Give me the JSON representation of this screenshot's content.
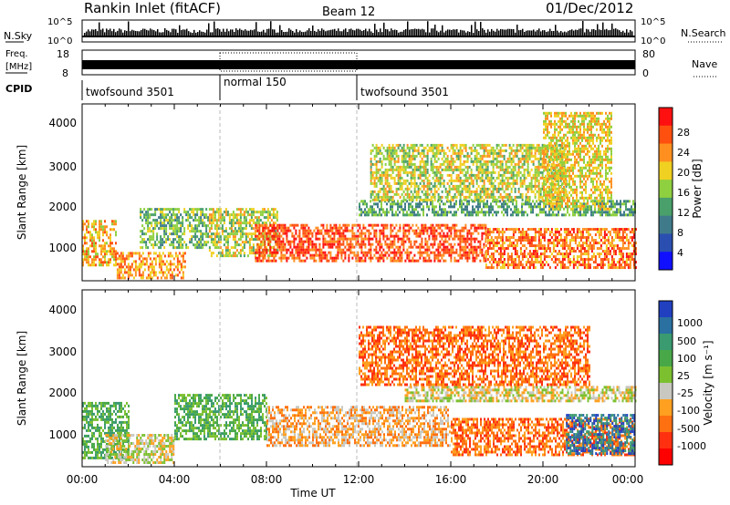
{
  "header": {
    "station": "Rankin Inlet (fitACF)",
    "beam": "Beam 12",
    "date": "01/Dec/2012"
  },
  "strips": {
    "nsky_label": "N.Sky",
    "nsky_ticks": [
      "10^5",
      "10^0"
    ],
    "nsearch_label": "N.Search",
    "freq_label_line1": "Freq.",
    "freq_label_line2": "[MHz]",
    "freq_ticks": [
      "18",
      "8"
    ],
    "nave_label": "Nave",
    "nave_ticks": [
      "80",
      "0"
    ],
    "cpid_label": "CPID",
    "cpid_segments": [
      {
        "label": "twofsound 3501",
        "start_h": 0,
        "end_h": 6
      },
      {
        "label": "normal 150",
        "start_h": 6,
        "end_h": 12
      },
      {
        "label": "twofsound 3501",
        "start_h": 12,
        "end_h": 24
      }
    ]
  },
  "time_axis": {
    "ticks": [
      "00:00",
      "04:00",
      "08:00",
      "12:00",
      "16:00",
      "20:00",
      "00:00"
    ],
    "label": "Time UT"
  },
  "panels": {
    "power": {
      "ylabel": "Slant Range [km]",
      "yticks": [
        "4000",
        "3000",
        "2000",
        "1000"
      ],
      "cbar_label": "Power [dB]",
      "cbar_ticks": [
        "28",
        "24",
        "20",
        "16",
        "12",
        "8",
        "4"
      ]
    },
    "velocity": {
      "ylabel": "Slant Range [km]",
      "yticks": [
        "4000",
        "3000",
        "2000",
        "1000"
      ],
      "cbar_label": "Velocity [m s⁻¹]",
      "cbar_ticks": [
        "1000",
        "500",
        "100",
        "25",
        "-25",
        "-100",
        "-500",
        "-1000"
      ]
    }
  },
  "chart_data": [
    {
      "type": "heatmap",
      "title": "Rankin Inlet (fitACF) Beam 12 01/Dec/2012",
      "xlabel": "Time UT",
      "ylabel": "Slant Range [km]",
      "xlim": [
        0,
        24
      ],
      "ylim": [
        180,
        4600
      ],
      "colorbar": {
        "label": "Power [dB]",
        "range": [
          0,
          32
        ],
        "ticks": [
          4,
          8,
          12,
          16,
          20,
          24,
          28
        ]
      },
      "colors": [
        "#1010ff",
        "#2a4fb0",
        "#3f7a8a",
        "#4aa06a",
        "#8fd040",
        "#f0d020",
        "#ff9020",
        "#ff5010",
        "#ff1010"
      ],
      "regions": [
        {
          "t": [
            0,
            1.5
          ],
          "range_km": [
            600,
            1700
          ],
          "value": 22
        },
        {
          "t": [
            1.5,
            4.5
          ],
          "range_km": [
            250,
            900
          ],
          "value": 24
        },
        {
          "t": [
            2.5,
            5.5
          ],
          "range_km": [
            1000,
            2000
          ],
          "value": 14
        },
        {
          "t": [
            5.5,
            8.5
          ],
          "range_km": [
            800,
            2000
          ],
          "value": 18
        },
        {
          "t": [
            7.5,
            17.5
          ],
          "range_km": [
            700,
            1600
          ],
          "value": 28
        },
        {
          "t": [
            17.5,
            24
          ],
          "range_km": [
            500,
            1500
          ],
          "value": 26
        },
        {
          "t": [
            12,
            24
          ],
          "range_km": [
            1800,
            2200
          ],
          "value": 12
        },
        {
          "t": [
            12.5,
            21
          ],
          "range_km": [
            2200,
            3600
          ],
          "value": 18
        },
        {
          "t": [
            20,
            23
          ],
          "range_km": [
            2000,
            4400
          ],
          "value": 20
        }
      ]
    },
    {
      "type": "heatmap",
      "xlabel": "Time UT",
      "ylabel": "Slant Range [km]",
      "xlim": [
        0,
        24
      ],
      "ylim": [
        180,
        4600
      ],
      "colorbar": {
        "label": "Velocity [m s⁻¹]",
        "ticks": [
          1000,
          500,
          100,
          25,
          -25,
          -100,
          -500,
          -1000
        ]
      },
      "colors": [
        "#2040c0",
        "#2a70a0",
        "#3a9a70",
        "#48a848",
        "#7cc030",
        "#c8c8c0",
        "#ffa020",
        "#ff7010",
        "#ff3010",
        "#ff0000"
      ],
      "regions": [
        {
          "t": [
            0,
            2
          ],
          "range_km": [
            400,
            1800
          ],
          "value": 100
        },
        {
          "t": [
            1,
            4
          ],
          "range_km": [
            300,
            1000
          ],
          "value": 0
        },
        {
          "t": [
            4,
            8
          ],
          "range_km": [
            900,
            2000
          ],
          "value": 200
        },
        {
          "t": [
            8,
            16
          ],
          "range_km": [
            700,
            1700
          ],
          "value": -150
        },
        {
          "t": [
            16,
            24
          ],
          "range_km": [
            500,
            1400
          ],
          "value": -300
        },
        {
          "t": [
            14,
            24
          ],
          "range_km": [
            1800,
            2200
          ],
          "value": 0
        },
        {
          "t": [
            12,
            22
          ],
          "range_km": [
            2200,
            3700
          ],
          "value": -200
        },
        {
          "t": [
            21,
            24
          ],
          "range_km": [
            500,
            1500
          ],
          "value": 300
        }
      ]
    }
  ]
}
